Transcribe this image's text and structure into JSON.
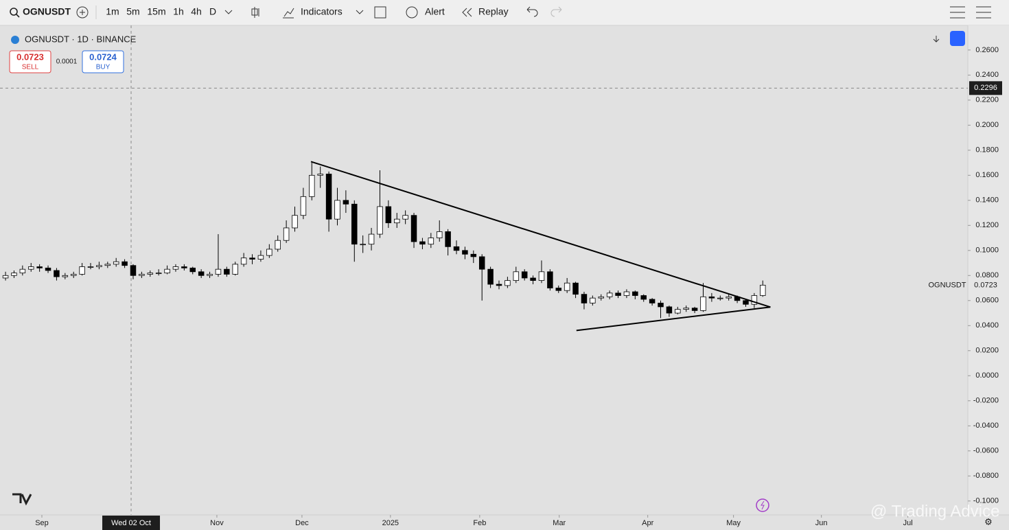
{
  "toolbar": {
    "symbol": "OGNUSDT",
    "intervals": [
      "1m",
      "5m",
      "15m",
      "1h",
      "4h",
      "D"
    ],
    "indicators": "Indicators",
    "alert": "Alert",
    "replay": "Replay"
  },
  "chart_data": {
    "type": "candlestick",
    "title": "OGNUSDT · 1D · BINANCE",
    "trade": {
      "sell_price": "0.0723",
      "sell": "SELL",
      "spread": "0.0001",
      "buy_price": "0.0724",
      "buy": "BUY"
    },
    "open": [
      0.078,
      0.08,
      0.082,
      0.085,
      0.087,
      0.086,
      0.084,
      0.079,
      0.08,
      0.081,
      0.087,
      0.087,
      0.088,
      0.089,
      0.091,
      0.088,
      0.08,
      0.081,
      0.082,
      0.082,
      0.085,
      0.087,
      0.086,
      0.083,
      0.08,
      0.081,
      0.085,
      0.081,
      0.089,
      0.094,
      0.093,
      0.096,
      0.101,
      0.108,
      0.118,
      0.128,
      0.143,
      0.16,
      0.161,
      0.125,
      0.14,
      0.137,
      0.105,
      0.105,
      0.113,
      0.135,
      0.122,
      0.125,
      0.128,
      0.107,
      0.105,
      0.11,
      0.115,
      0.103,
      0.1,
      0.097,
      0.095,
      0.085,
      0.073,
      0.072,
      0.076,
      0.083,
      0.078,
      0.076,
      0.083,
      0.07,
      0.068,
      0.074,
      0.065,
      0.058,
      0.062,
      0.063,
      0.066,
      0.064,
      0.067,
      0.064,
      0.061,
      0.058,
      0.055,
      0.05,
      0.053,
      0.054,
      0.052,
      0.063,
      0.062,
      0.062,
      0.063,
      0.06,
      0.057,
      0.064
    ],
    "high": [
      0.083,
      0.084,
      0.088,
      0.09,
      0.089,
      0.088,
      0.086,
      0.082,
      0.083,
      0.09,
      0.09,
      0.091,
      0.091,
      0.094,
      0.093,
      0.089,
      0.083,
      0.084,
      0.085,
      0.088,
      0.089,
      0.089,
      0.087,
      0.085,
      0.083,
      0.113,
      0.087,
      0.091,
      0.098,
      0.097,
      0.1,
      0.105,
      0.112,
      0.124,
      0.135,
      0.15,
      0.17,
      0.167,
      0.163,
      0.15,
      0.148,
      0.14,
      0.112,
      0.118,
      0.164,
      0.14,
      0.13,
      0.132,
      0.13,
      0.11,
      0.114,
      0.124,
      0.117,
      0.108,
      0.103,
      0.1,
      0.097,
      0.087,
      0.076,
      0.079,
      0.087,
      0.085,
      0.08,
      0.092,
      0.085,
      0.072,
      0.078,
      0.075,
      0.067,
      0.064,
      0.065,
      0.068,
      0.068,
      0.069,
      0.068,
      0.065,
      0.062,
      0.06,
      0.056,
      0.055,
      0.056,
      0.055,
      0.074,
      0.066,
      0.064,
      0.065,
      0.064,
      0.061,
      0.066,
      0.076
    ],
    "low": [
      0.076,
      0.078,
      0.08,
      0.083,
      0.083,
      0.082,
      0.076,
      0.077,
      0.078,
      0.08,
      0.085,
      0.085,
      0.086,
      0.087,
      0.086,
      0.077,
      0.078,
      0.079,
      0.08,
      0.081,
      0.083,
      0.084,
      0.081,
      0.078,
      0.078,
      0.079,
      0.079,
      0.08,
      0.087,
      0.089,
      0.091,
      0.094,
      0.099,
      0.106,
      0.115,
      0.125,
      0.14,
      0.15,
      0.115,
      0.12,
      0.13,
      0.091,
      0.098,
      0.1,
      0.11,
      0.118,
      0.118,
      0.121,
      0.102,
      0.101,
      0.102,
      0.107,
      0.096,
      0.097,
      0.093,
      0.09,
      0.06,
      0.07,
      0.069,
      0.07,
      0.074,
      0.076,
      0.073,
      0.074,
      0.068,
      0.066,
      0.066,
      0.062,
      0.053,
      0.056,
      0.06,
      0.061,
      0.062,
      0.062,
      0.061,
      0.059,
      0.056,
      0.046,
      0.047,
      0.049,
      0.051,
      0.05,
      0.051,
      0.059,
      0.06,
      0.06,
      0.058,
      0.055,
      0.054,
      0.063
    ],
    "close": [
      0.08,
      0.082,
      0.085,
      0.087,
      0.086,
      0.084,
      0.079,
      0.08,
      0.081,
      0.087,
      0.087,
      0.088,
      0.089,
      0.091,
      0.088,
      0.08,
      0.081,
      0.082,
      0.082,
      0.085,
      0.087,
      0.086,
      0.083,
      0.08,
      0.081,
      0.085,
      0.081,
      0.089,
      0.094,
      0.093,
      0.096,
      0.101,
      0.108,
      0.118,
      0.128,
      0.143,
      0.16,
      0.161,
      0.125,
      0.14,
      0.137,
      0.105,
      0.105,
      0.113,
      0.135,
      0.122,
      0.125,
      0.128,
      0.107,
      0.105,
      0.11,
      0.115,
      0.103,
      0.1,
      0.097,
      0.095,
      0.085,
      0.073,
      0.072,
      0.076,
      0.083,
      0.078,
      0.076,
      0.083,
      0.07,
      0.068,
      0.074,
      0.065,
      0.058,
      0.062,
      0.063,
      0.066,
      0.064,
      0.067,
      0.064,
      0.061,
      0.058,
      0.055,
      0.05,
      0.053,
      0.054,
      0.052,
      0.063,
      0.062,
      0.062,
      0.063,
      0.06,
      0.057,
      0.064,
      0.0723
    ],
    "color_up": "#ffffff",
    "color_down": "#000000",
    "xlim": [
      -0.65,
      113.1
    ],
    "xticks": [
      {
        "value": 4.27,
        "label": "Sep"
      },
      {
        "value": 24.84,
        "label": "Nov"
      },
      {
        "value": 34.84,
        "label": "Dec"
      },
      {
        "value": 45.24,
        "label": "2025"
      },
      {
        "value": 55.73,
        "label": "Feb"
      },
      {
        "value": 65.08,
        "label": "Mar"
      },
      {
        "value": 75.48,
        "label": "Apr"
      },
      {
        "value": 85.56,
        "label": "May"
      },
      {
        "value": 95.89,
        "label": "Jun"
      },
      {
        "value": 106.05,
        "label": "Jul"
      }
    ],
    "ylim": [
      -0.11,
      0.278
    ],
    "yticks": [
      {
        "value": 0.26,
        "label": "0.2600"
      },
      {
        "value": 0.24,
        "label": "0.2400"
      },
      {
        "value": 0.22,
        "label": "0.2200"
      },
      {
        "value": 0.2,
        "label": "0.2000"
      },
      {
        "value": 0.18,
        "label": "0.1800"
      },
      {
        "value": 0.16,
        "label": "0.1600"
      },
      {
        "value": 0.14,
        "label": "0.1400"
      },
      {
        "value": 0.12,
        "label": "0.1200"
      },
      {
        "value": 0.1,
        "label": "0.1000"
      },
      {
        "value": 0.08,
        "label": "0.0800"
      },
      {
        "value": 0.06,
        "label": "0.0600"
      },
      {
        "value": 0.04,
        "label": "0.0400"
      },
      {
        "value": 0.02,
        "label": "0.0200"
      },
      {
        "value": 0,
        "label": "0.0000"
      },
      {
        "value": -0.02,
        "label": "-0.0200"
      },
      {
        "value": -0.04,
        "label": "-0.0400"
      },
      {
        "value": -0.06,
        "label": "-0.0600"
      },
      {
        "value": -0.08,
        "label": "-0.0800"
      },
      {
        "value": -0.1,
        "label": "-0.1000"
      }
    ],
    "crosshair": {
      "x": 14.76,
      "x_label": "Wed 02 Oct",
      "y": 0.2296
    },
    "last_price": {
      "name": "OGNUSDT",
      "value": 0.0723
    },
    "trendlines": [
      {
        "x": [
          35.9,
          89.9
        ],
        "y": [
          0.1709,
          0.0548
        ]
      },
      {
        "x": [
          67.1,
          89.9
        ],
        "y": [
          0.0361,
          0.0548
        ]
      }
    ]
  },
  "watermark": "@ Trading Advice"
}
